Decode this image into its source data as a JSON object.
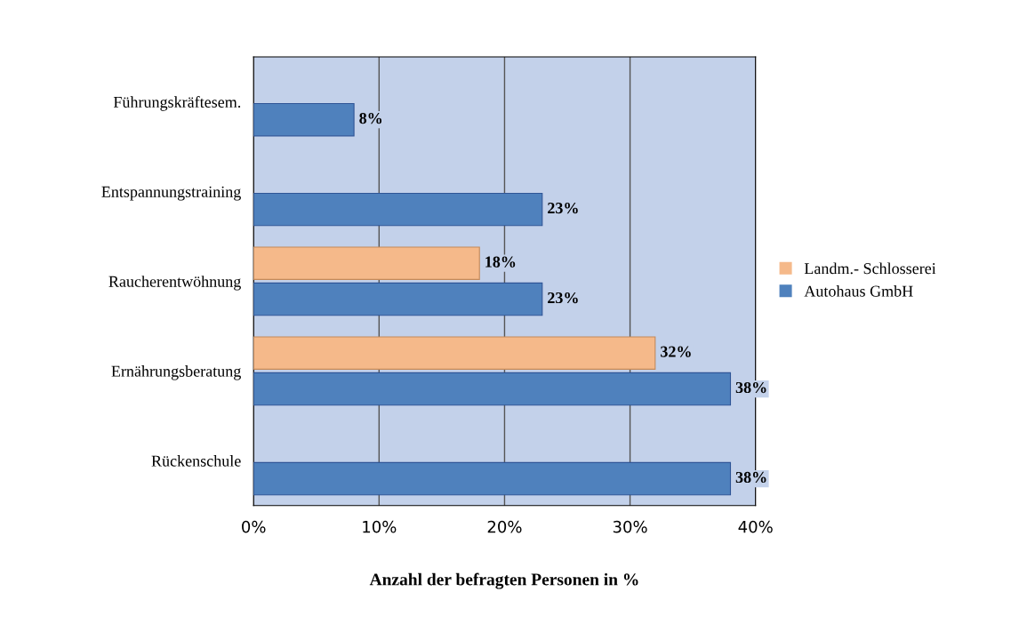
{
  "chart_data": {
    "type": "bar",
    "orientation": "horizontal",
    "categories": [
      "Führungskräftesem.",
      "Entspannungstraining",
      "Raucherentwöhnung",
      "Ernährungsberatung",
      "Rückenschule"
    ],
    "series": [
      {
        "name": "Landm.- Schlosserei",
        "color": "#f5b98a",
        "values": [
          null,
          null,
          18,
          32,
          null
        ],
        "value_labels": [
          null,
          null,
          "18%",
          "32%",
          null
        ]
      },
      {
        "name": "Autohaus GmbH",
        "color": "#4f81bd",
        "values": [
          8,
          23,
          23,
          38,
          38
        ],
        "value_labels": [
          "8%",
          "23%",
          "23%",
          "38%",
          "38%"
        ]
      }
    ],
    "xlim": [
      0,
      40
    ],
    "xticks": [
      {
        "value": 0,
        "label": "0%"
      },
      {
        "value": 10,
        "label": "10%"
      },
      {
        "value": 20,
        "label": "20%"
      },
      {
        "value": 30,
        "label": "30%"
      },
      {
        "value": 40,
        "label": "40%"
      }
    ],
    "xlabel": "Anzahl der befragten Personen in %",
    "grid": "x",
    "legend": "right"
  }
}
